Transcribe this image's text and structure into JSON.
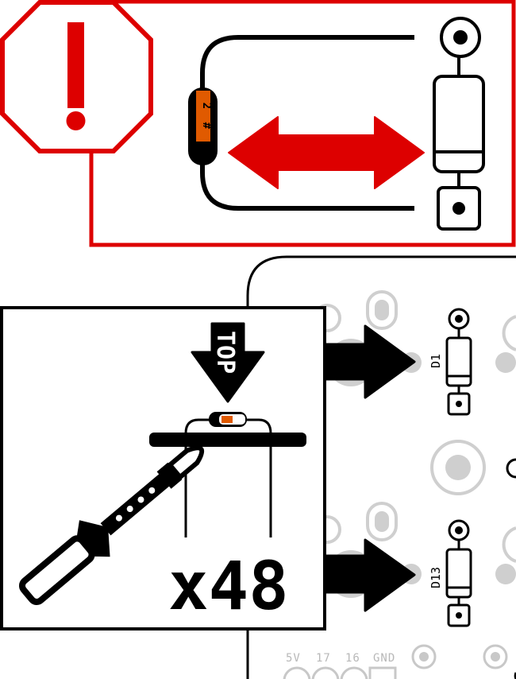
{
  "colors": {
    "warning_red": "#dd0000",
    "diode_band": "#e05a00",
    "ink": "#000000",
    "pcb_grey": "#c8c8c8",
    "paper": "#ffffff"
  },
  "warning_panel": {
    "icon": "exclamation-stop-sign-icon",
    "bend_direction_icon": "double-headed-arrow-icon"
  },
  "instruction_panel": {
    "orientation_label": "TOP",
    "quantity": "x48",
    "tool_icon": "soldering-iron-icon"
  },
  "pcb": {
    "diodes": [
      {
        "label": "D1"
      },
      {
        "label": "D13"
      }
    ],
    "header_labels": [
      "5V",
      "17",
      "16",
      "GND"
    ]
  }
}
